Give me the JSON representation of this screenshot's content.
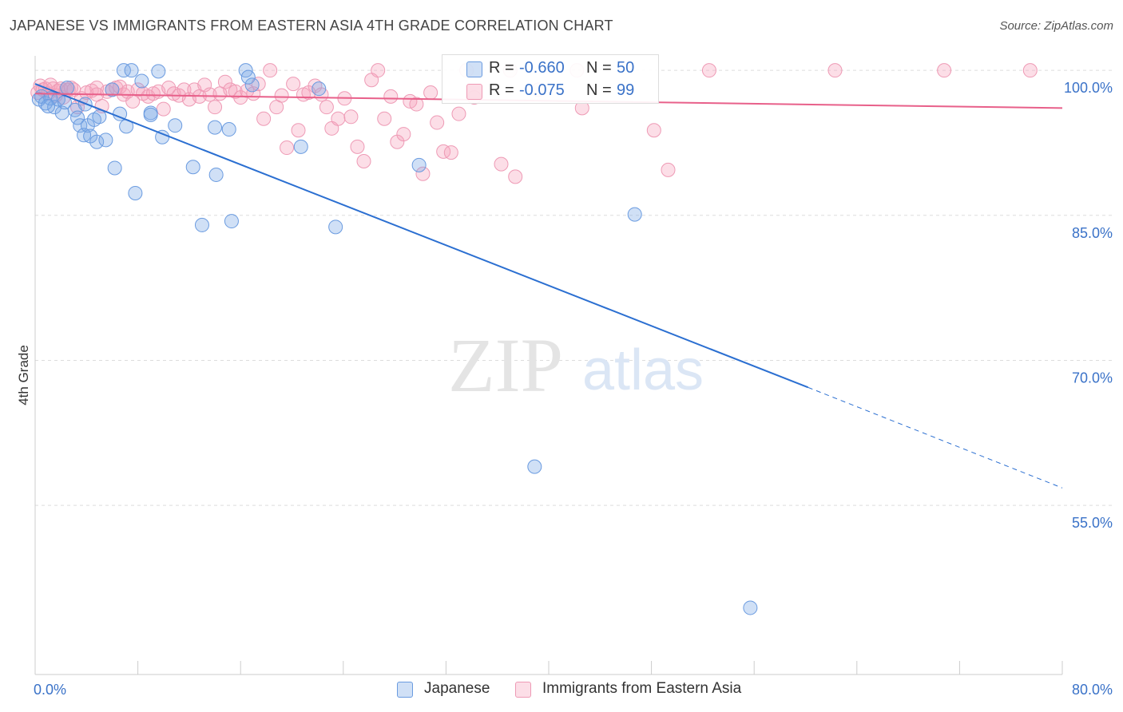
{
  "title": "JAPANESE VS IMMIGRANTS FROM EASTERN ASIA 4TH GRADE CORRELATION CHART",
  "source": "Source: ZipAtlas.com",
  "watermark": {
    "zip": "ZIP",
    "atlas": "atlas"
  },
  "legend_top": {
    "rows": [
      {
        "r_label": "R = ",
        "r_value": "-0.660",
        "n_label": "N = ",
        "n_value": "50"
      },
      {
        "r_label": "R = ",
        "r_value": "-0.075",
        "n_label": "N = ",
        "n_value": "99"
      }
    ]
  },
  "legend_bottom": {
    "series1": "Japanese",
    "series2": "Immigrants from Eastern Asia"
  },
  "colors": {
    "japanese_fill": "rgba(120,165,230,0.35)",
    "japanese_stroke": "#6a9be0",
    "japanese_line": "#2b6fd1",
    "immigrants_fill": "rgba(245,160,185,0.35)",
    "immigrants_stroke": "#ee9ab5",
    "immigrants_line": "#e8608a",
    "tick_label": "#3a72c8",
    "grid": "#dddddd"
  },
  "chart_data": {
    "type": "scatter",
    "title": "JAPANESE VS IMMIGRANTS FROM EASTERN ASIA 4TH GRADE CORRELATION CHART",
    "xlabel": "",
    "ylabel": "4th Grade",
    "xlim": [
      0,
      80
    ],
    "ylim": [
      37.5,
      101.5
    ],
    "x_tick_labels": [
      "0.0%",
      "80.0%"
    ],
    "y_ticks": [
      55,
      70,
      85,
      100
    ],
    "y_tick_labels": [
      "55.0%",
      "70.0%",
      "85.0%",
      "100.0%"
    ],
    "grid": "horizontal dashed",
    "series": [
      {
        "name": "Japanese",
        "R": -0.66,
        "N": 50,
        "trend": {
          "x0": 0,
          "y0": 98.6,
          "x1": 60.2,
          "y1": 67.2,
          "dashed_to_x": 80,
          "dashed_to_y": 56.8
        },
        "points": [
          [
            0.3,
            97.0
          ],
          [
            0.5,
            97.3
          ],
          [
            0.8,
            96.6
          ],
          [
            1.2,
            97.1
          ],
          [
            1.5,
            96.2
          ],
          [
            1.8,
            97.0
          ],
          [
            2.1,
            95.6
          ],
          [
            2.5,
            98.2
          ],
          [
            3.1,
            95.9
          ],
          [
            3.3,
            95.1
          ],
          [
            3.5,
            94.3
          ],
          [
            3.8,
            93.3
          ],
          [
            4.1,
            94.3
          ],
          [
            4.3,
            93.2
          ],
          [
            4.6,
            94.9
          ],
          [
            4.8,
            92.6
          ],
          [
            5.5,
            92.8
          ],
          [
            6.0,
            98.0
          ],
          [
            6.2,
            89.9
          ],
          [
            6.6,
            95.5
          ],
          [
            6.9,
            100.0
          ],
          [
            7.1,
            94.2
          ],
          [
            7.5,
            100.0
          ],
          [
            7.8,
            87.3
          ],
          [
            8.3,
            98.9
          ],
          [
            9.0,
            95.6
          ],
          [
            9.0,
            95.4
          ],
          [
            9.6,
            99.9
          ],
          [
            9.9,
            93.1
          ],
          [
            10.9,
            94.3
          ],
          [
            12.3,
            90.0
          ],
          [
            13.0,
            84.0
          ],
          [
            14.0,
            94.1
          ],
          [
            14.1,
            89.2
          ],
          [
            15.1,
            93.9
          ],
          [
            15.3,
            84.4
          ],
          [
            16.4,
            100.0
          ],
          [
            16.6,
            99.3
          ],
          [
            16.9,
            98.5
          ],
          [
            20.7,
            92.1
          ],
          [
            22.1,
            98.1
          ],
          [
            23.4,
            83.8
          ],
          [
            29.9,
            90.2
          ],
          [
            38.9,
            59.0
          ],
          [
            46.7,
            85.1
          ],
          [
            55.7,
            44.4
          ],
          [
            2.3,
            96.7
          ],
          [
            1.0,
            96.3
          ],
          [
            5.0,
            95.2
          ],
          [
            3.9,
            96.5
          ]
        ]
      },
      {
        "name": "Immigrants from Eastern Asia",
        "R": -0.075,
        "N": 99,
        "trend": {
          "x0": 0,
          "y0": 97.6,
          "x1": 80,
          "y1": 96.1
        },
        "points": [
          [
            0.2,
            97.7
          ],
          [
            0.4,
            98.4
          ],
          [
            0.6,
            98.0
          ],
          [
            0.8,
            98.1
          ],
          [
            1.0,
            97.6
          ],
          [
            1.2,
            98.5
          ],
          [
            1.4,
            98.1
          ],
          [
            1.6,
            97.4
          ],
          [
            1.8,
            97.9
          ],
          [
            2.0,
            98.1
          ],
          [
            2.2,
            97.2
          ],
          [
            2.4,
            98.0
          ],
          [
            2.6,
            98.0
          ],
          [
            2.8,
            98.2
          ],
          [
            3.0,
            98.0
          ],
          [
            3.3,
            96.2
          ],
          [
            3.6,
            97.1
          ],
          [
            4.0,
            97.7
          ],
          [
            4.4,
            97.9
          ],
          [
            4.8,
            98.2
          ],
          [
            5.2,
            96.3
          ],
          [
            5.6,
            97.8
          ],
          [
            6.0,
            98.0
          ],
          [
            6.3,
            98.2
          ],
          [
            6.6,
            98.3
          ],
          [
            6.9,
            97.5
          ],
          [
            7.2,
            97.8
          ],
          [
            7.6,
            96.8
          ],
          [
            8.0,
            98.0
          ],
          [
            8.4,
            97.6
          ],
          [
            8.8,
            97.3
          ],
          [
            9.2,
            97.6
          ],
          [
            9.6,
            97.8
          ],
          [
            10.0,
            96.0
          ],
          [
            10.4,
            98.2
          ],
          [
            10.8,
            97.6
          ],
          [
            11.2,
            97.4
          ],
          [
            11.6,
            98.0
          ],
          [
            12.0,
            97.0
          ],
          [
            12.4,
            98.0
          ],
          [
            12.8,
            97.3
          ],
          [
            13.2,
            98.5
          ],
          [
            13.6,
            97.5
          ],
          [
            14.0,
            96.2
          ],
          [
            14.4,
            97.6
          ],
          [
            14.8,
            98.8
          ],
          [
            15.2,
            98.0
          ],
          [
            15.6,
            97.8
          ],
          [
            16.0,
            97.2
          ],
          [
            16.5,
            97.9
          ],
          [
            17.0,
            97.6
          ],
          [
            17.4,
            98.6
          ],
          [
            17.8,
            95.0
          ],
          [
            18.3,
            100.0
          ],
          [
            18.8,
            96.2
          ],
          [
            19.2,
            97.4
          ],
          [
            19.6,
            92.0
          ],
          [
            20.1,
            98.6
          ],
          [
            20.5,
            93.8
          ],
          [
            20.9,
            97.5
          ],
          [
            21.3,
            97.7
          ],
          [
            21.8,
            98.4
          ],
          [
            22.3,
            97.5
          ],
          [
            22.7,
            96.2
          ],
          [
            23.1,
            94.0
          ],
          [
            23.6,
            95.0
          ],
          [
            24.1,
            97.1
          ],
          [
            24.6,
            95.2
          ],
          [
            25.1,
            92.1
          ],
          [
            25.6,
            90.6
          ],
          [
            26.2,
            99.0
          ],
          [
            26.7,
            100.0
          ],
          [
            27.2,
            95.0
          ],
          [
            27.7,
            97.3
          ],
          [
            28.2,
            92.6
          ],
          [
            28.7,
            93.4
          ],
          [
            29.2,
            96.8
          ],
          [
            29.7,
            96.5
          ],
          [
            30.2,
            89.3
          ],
          [
            30.8,
            97.7
          ],
          [
            31.3,
            94.6
          ],
          [
            31.8,
            91.6
          ],
          [
            32.4,
            91.5
          ],
          [
            33.0,
            95.5
          ],
          [
            33.6,
            100.0
          ],
          [
            34.2,
            97.2
          ],
          [
            36.3,
            90.3
          ],
          [
            37.0,
            100.0
          ],
          [
            37.4,
            89.0
          ],
          [
            39.2,
            98.0
          ],
          [
            42.2,
            100.0
          ],
          [
            42.6,
            96.1
          ],
          [
            48.2,
            93.8
          ],
          [
            49.3,
            89.7
          ],
          [
            52.5,
            100.0
          ],
          [
            62.3,
            100.0
          ],
          [
            70.8,
            100.0
          ],
          [
            77.5,
            100.0
          ],
          [
            4.8,
            97.5
          ]
        ]
      }
    ]
  }
}
